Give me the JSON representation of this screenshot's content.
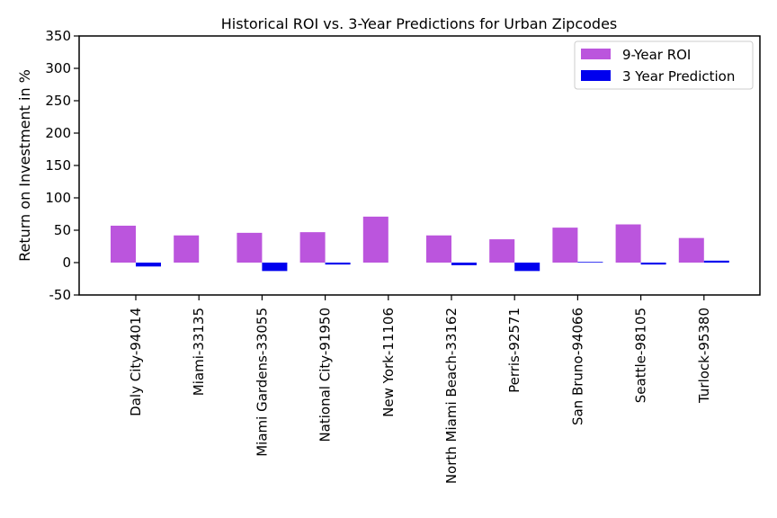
{
  "chart_data": {
    "type": "bar",
    "title": "Historical ROI vs. 3-Year Predictions for Urban Zipcodes",
    "xlabel": "",
    "ylabel": "Return on Investment in %",
    "ylim": [
      -50,
      350
    ],
    "yticks": [
      -50,
      0,
      50,
      100,
      150,
      200,
      250,
      300,
      350
    ],
    "grid": false,
    "legend_position": "top-right",
    "categories": [
      "Daly City-94014",
      "Miami-33135",
      "Miami Gardens-33055",
      "National City-91950",
      "New York-11106",
      "North Miami Beach-33162",
      "Perris-92571",
      "San Bruno-94066",
      "Seattle-98105",
      "Turlock-95380"
    ],
    "series": [
      {
        "name": "9-Year ROI",
        "color": "#bb55dd",
        "values": [
          57,
          42,
          46,
          47,
          71,
          42,
          36,
          54,
          59,
          38
        ]
      },
      {
        "name": "3 Year Prediction",
        "color": "#0000ee",
        "values": [
          -6,
          0,
          -13,
          -3,
          0,
          -4,
          -13,
          1,
          -3,
          3
        ]
      }
    ]
  }
}
